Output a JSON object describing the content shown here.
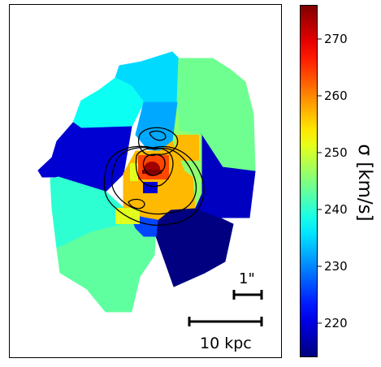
{
  "chart_data": {
    "type": "heatmap",
    "description_quantity": "stellar velocity dispersion map (Voronoi bins)",
    "colorbar": {
      "label": "σ [km/s]",
      "colormap": "jet",
      "vmin": 214,
      "vmax": 276,
      "ticks": [
        220,
        230,
        240,
        250,
        260,
        270
      ],
      "tick_labels": [
        "220",
        "230",
        "240",
        "250",
        "260",
        "270"
      ]
    },
    "bins_sigma_km_s": {
      "north_lobe": 235,
      "north_east": 244,
      "north_west": 238,
      "west": 219,
      "south_west": 240,
      "south": 243,
      "south_east_outer": 214,
      "east": 218,
      "east_mid": 246,
      "inner_north": 232,
      "inner_east": 257,
      "inner_south": 226,
      "nucleus": 274,
      "nucleus_ring": 264
    },
    "overlays": {
      "contours": "black flux contours",
      "scale_bars": [
        {
          "label": "1\""
        },
        {
          "label": "10 kpc"
        }
      ]
    },
    "axes": {
      "ticks_visible": false
    }
  },
  "labels": {
    "arcsec": "1\"",
    "kpc": "10 kpc",
    "cbar": "σ [km/s]"
  }
}
